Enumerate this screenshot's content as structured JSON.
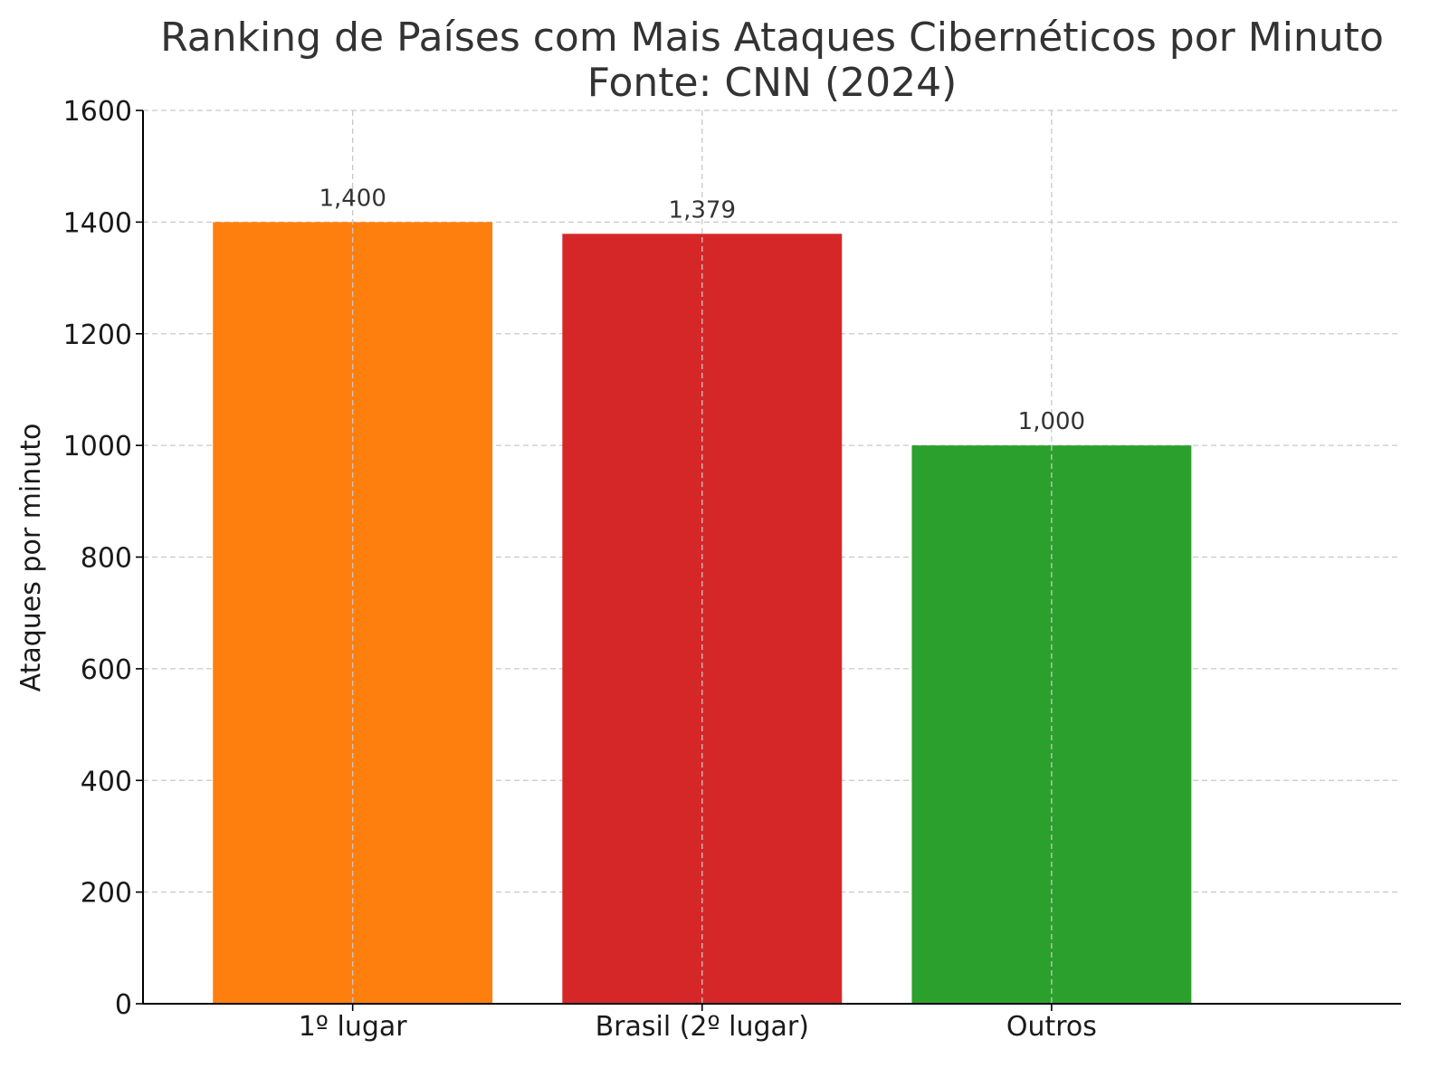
{
  "chart_data": {
    "type": "bar",
    "title_line1": "Ranking de Países com Mais Ataques Cibernéticos por Minuto",
    "title_line2": "Fonte: CNN (2024)",
    "xlabel": "",
    "ylabel": "Ataques por minuto",
    "categories": [
      "1º lugar",
      "Brasil (2º lugar)",
      "Outros"
    ],
    "values": [
      1400,
      1379,
      1000
    ],
    "value_labels": [
      "1,400",
      "1,379",
      "1,000"
    ],
    "colors": [
      "#ff7f0e",
      "#d62728",
      "#2ca02c"
    ],
    "ylim": [
      0,
      1600
    ],
    "yticks": [
      "0",
      "200",
      "400",
      "600",
      "800",
      "1000",
      "1200",
      "1400",
      "1600"
    ],
    "grid": true
  }
}
